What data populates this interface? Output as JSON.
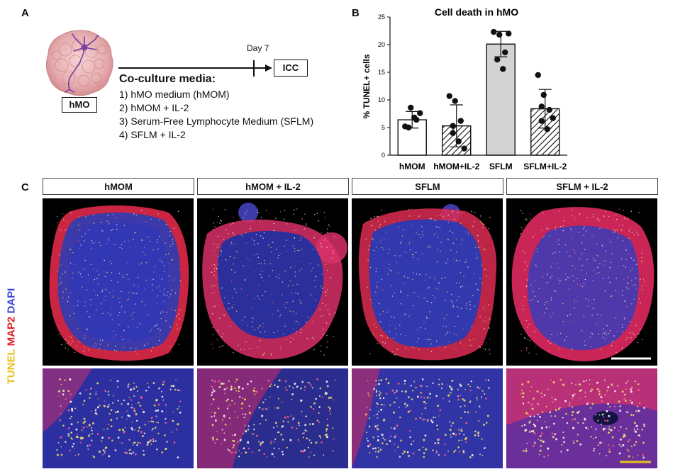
{
  "panel_a": {
    "letter": "A",
    "organoid_label": "hMO",
    "day_label": "Day 7",
    "endpoint_label": "ICC",
    "media_title": "Co-culture media:",
    "media_items": [
      "1) hMO medium (hMOM)",
      "2) hMOM + IL-2",
      "3) Serum-Free Lymphocyte Medium (SFLM)",
      "4) SFLM + IL-2"
    ]
  },
  "panel_b": {
    "letter": "B"
  },
  "chart_data": {
    "type": "bar",
    "title": "Cell death in hMO",
    "ylabel": "% TUNEL+ cells",
    "xlabel": "",
    "categories": [
      "hMOM",
      "hMOM+IL-2",
      "SFLM",
      "SFLM+IL-2"
    ],
    "values": [
      6.4,
      5.3,
      20.1,
      8.4
    ],
    "error": [
      1.5,
      3.8,
      2.3,
      3.5
    ],
    "points": [
      [
        5.2,
        8.6,
        6.4,
        5.0,
        6.8,
        7.6
      ],
      [
        10.7,
        9.8,
        6.2,
        5.3,
        2.5,
        1.2,
        4.0
      ],
      [
        22.3,
        21.8,
        18.6,
        17.3,
        15.6,
        22.0
      ],
      [
        14.5,
        10.9,
        8.2,
        6.2,
        4.7,
        6.7,
        8.8
      ]
    ],
    "bar_fills": [
      "white",
      "hatched",
      "#d3d3d3",
      "hatched"
    ],
    "ylim": [
      0,
      25
    ],
    "yticks": [
      0,
      5,
      10,
      15,
      20,
      25
    ]
  },
  "panel_c": {
    "letter": "C",
    "columns": [
      "hMOM",
      "hMOM + IL-2",
      "SFLM",
      "SFLM + IL-2"
    ],
    "stain_tunel": "TUNEL",
    "stain_map2": "MAP2",
    "stain_dapi": "DAPI",
    "colors": {
      "tunel": "#e8c21a",
      "map2": "#e0202a",
      "dapi": "#3a46d8"
    }
  }
}
